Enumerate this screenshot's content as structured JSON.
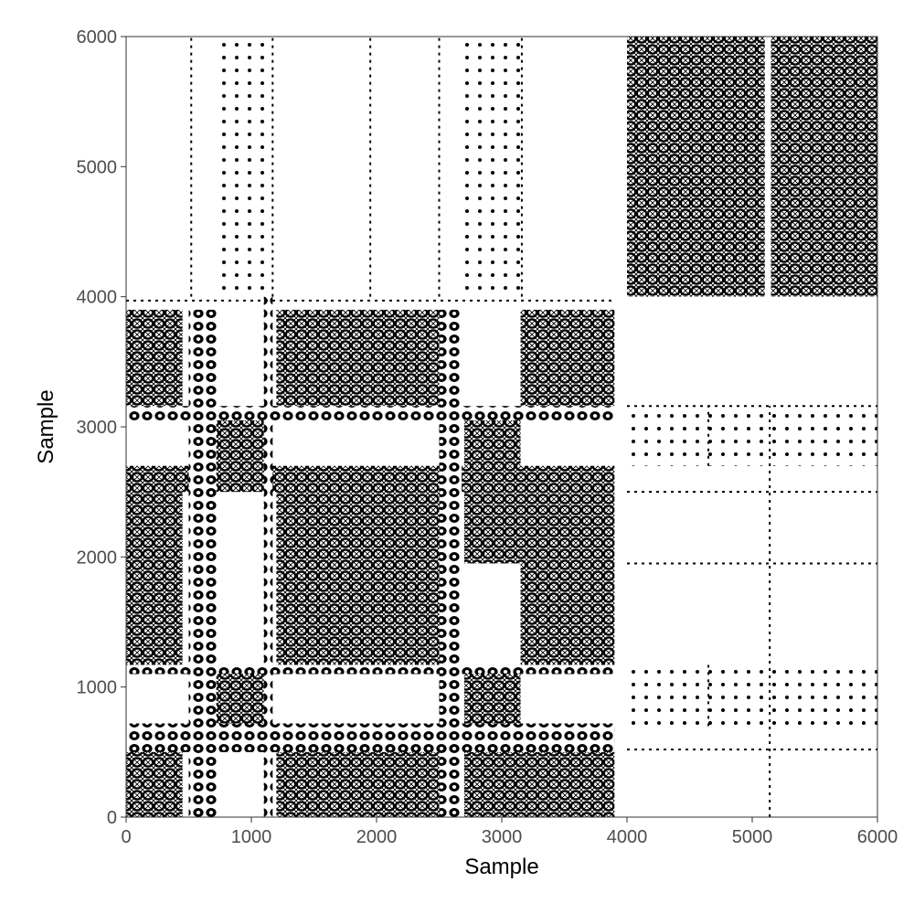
{
  "chart_data": {
    "type": "heatmap",
    "subtype": "recurrence-plot",
    "title": "",
    "xlabel": "Sample",
    "ylabel": "Sample",
    "xlim": [
      0,
      6000
    ],
    "ylim": [
      0,
      6000
    ],
    "x_ticks": [
      0,
      1000,
      2000,
      3000,
      4000,
      5000,
      6000
    ],
    "y_ticks": [
      0,
      1000,
      2000,
      3000,
      4000,
      5000,
      6000
    ],
    "x_tick_labels": [
      "0",
      "1000",
      "2000",
      "3000",
      "4000",
      "5000",
      "6000"
    ],
    "y_tick_labels": [
      "0",
      "1000",
      "2000",
      "3000",
      "4000",
      "5000",
      "6000"
    ],
    "grid": false,
    "legend": "none",
    "colors": {
      "recurrent": "#000000",
      "background": "#ffffff",
      "tick_text": "#4d4d4d"
    },
    "segment_boundaries": [
      0,
      520,
      700,
      1170,
      1950,
      2500,
      2680,
      3160,
      3920,
      4000,
      4650,
      5140,
      6000
    ],
    "dense_regions": [
      {
        "x": [
          0,
          450
        ],
        "y": [
          0,
          700
        ]
      },
      {
        "x": [
          1200,
          1950
        ],
        "y": [
          0,
          700
        ]
      },
      {
        "x": [
          1950,
          2500
        ],
        "y": [
          0,
          700
        ]
      },
      {
        "x": [
          2700,
          3150
        ],
        "y": [
          0,
          1170
        ]
      },
      {
        "x": [
          3150,
          3900
        ],
        "y": [
          0,
          700
        ]
      },
      {
        "x": [
          700,
          1100
        ],
        "y": [
          700,
          1170
        ]
      },
      {
        "x": [
          0,
          450
        ],
        "y": [
          1170,
          1950
        ]
      },
      {
        "x": [
          1200,
          1950
        ],
        "y": [
          1170,
          1950
        ]
      },
      {
        "x": [
          1950,
          2500
        ],
        "y": [
          1170,
          1950
        ]
      },
      {
        "x": [
          3150,
          3900
        ],
        "y": [
          1170,
          1950
        ]
      },
      {
        "x": [
          0,
          450
        ],
        "y": [
          1950,
          2500
        ]
      },
      {
        "x": [
          1200,
          1950
        ],
        "y": [
          1950,
          2500
        ]
      },
      {
        "x": [
          1950,
          2500
        ],
        "y": [
          1950,
          2500
        ]
      },
      {
        "x": [
          2700,
          3150
        ],
        "y": [
          1950,
          2500
        ]
      },
      {
        "x": [
          3150,
          3900
        ],
        "y": [
          1950,
          2500
        ]
      },
      {
        "x": [
          0,
          3900
        ],
        "y": [
          2500,
          2700
        ]
      },
      {
        "x": [
          700,
          1100
        ],
        "y": [
          2700,
          3160
        ]
      },
      {
        "x": [
          2700,
          3150
        ],
        "y": [
          2700,
          3160
        ]
      },
      {
        "x": [
          0,
          450
        ],
        "y": [
          3160,
          3900
        ]
      },
      {
        "x": [
          1200,
          1950
        ],
        "y": [
          3160,
          3900
        ]
      },
      {
        "x": [
          1950,
          2500
        ],
        "y": [
          3160,
          3900
        ]
      },
      {
        "x": [
          3150,
          3900
        ],
        "y": [
          3160,
          3900
        ]
      },
      {
        "x": [
          4000,
          4650
        ],
        "y": [
          4000,
          4650
        ]
      },
      {
        "x": [
          4650,
          5100
        ],
        "y": [
          4000,
          4650
        ]
      },
      {
        "x": [
          5150,
          6000
        ],
        "y": [
          4000,
          4650
        ]
      },
      {
        "x": [
          4000,
          4650
        ],
        "y": [
          4650,
          5140
        ]
      },
      {
        "x": [
          4650,
          5100
        ],
        "y": [
          4650,
          5140
        ]
      },
      {
        "x": [
          5150,
          6000
        ],
        "y": [
          4650,
          5140
        ]
      },
      {
        "x": [
          4000,
          4650
        ],
        "y": [
          5140,
          6000
        ]
      },
      {
        "x": [
          4650,
          5100
        ],
        "y": [
          5140,
          6000
        ]
      },
      {
        "x": [
          5150,
          6000
        ],
        "y": [
          5140,
          6000
        ]
      }
    ],
    "band_regions": [
      {
        "x": [
          500,
          720
        ],
        "y": [
          0,
          3900
        ]
      },
      {
        "x": [
          1100,
          1170
        ],
        "y": [
          0,
          4000
        ]
      },
      {
        "x": [
          2500,
          2680
        ],
        "y": [
          0,
          3900
        ]
      },
      {
        "x": [
          0,
          3900
        ],
        "y": [
          500,
          720
        ]
      },
      {
        "x": [
          0,
          3900
        ],
        "y": [
          1100,
          1170
        ]
      },
      {
        "x": [
          0,
          3900
        ],
        "y": [
          3050,
          3160
        ]
      }
    ],
    "sparse_regions": [
      {
        "x": [
          700,
          1170
        ],
        "y": [
          4000,
          6000
        ]
      },
      {
        "x": [
          2680,
          3160
        ],
        "y": [
          4000,
          6000
        ]
      },
      {
        "x": [
          4000,
          6000
        ],
        "y": [
          700,
          1170
        ]
      },
      {
        "x": [
          4000,
          6000
        ],
        "y": [
          2700,
          3160
        ]
      }
    ],
    "lines": [
      {
        "x": [
          520,
          520
        ],
        "y": [
          4000,
          6000
        ]
      },
      {
        "x": [
          1170,
          1170
        ],
        "y": [
          4000,
          6000
        ]
      },
      {
        "x": [
          1950,
          1950
        ],
        "y": [
          4000,
          6000
        ]
      },
      {
        "x": [
          2500,
          2500
        ],
        "y": [
          4000,
          6000
        ]
      },
      {
        "x": [
          3160,
          3160
        ],
        "y": [
          4000,
          6000
        ]
      },
      {
        "x": [
          4000,
          6000
        ],
        "y": [
          520,
          520
        ]
      },
      {
        "x": [
          4000,
          6000
        ],
        "y": [
          1950,
          1950
        ]
      },
      {
        "x": [
          4000,
          6000
        ],
        "y": [
          2500,
          2500
        ]
      },
      {
        "x": [
          4000,
          6000
        ],
        "y": [
          3160,
          3160
        ]
      },
      {
        "x": [
          5140,
          5140
        ],
        "y": [
          0,
          3160
        ]
      },
      {
        "x": [
          4650,
          4650
        ],
        "y": [
          700,
          1170
        ]
      },
      {
        "x": [
          4650,
          4650
        ],
        "y": [
          2700,
          3160
        ]
      },
      {
        "x": [
          0,
          3900
        ],
        "y": [
          3970,
          3970
        ]
      }
    ]
  }
}
